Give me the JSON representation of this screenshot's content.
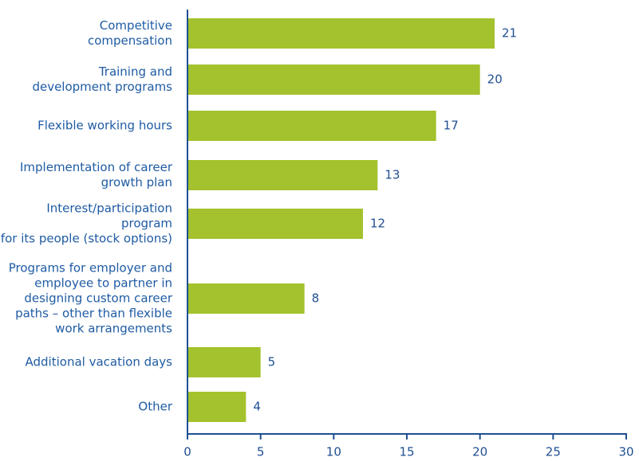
{
  "chart_data": {
    "type": "bar",
    "orientation": "horizontal",
    "categories": [
      "Competitive\ncompensation",
      "Training and\ndevelopment programs",
      "Flexible working hours",
      "Implementation of career\ngrowth plan",
      "Interest/participation program\nfor its people (stock options)",
      "Programs for employer and\nemployee to partner in\ndesigning custom career\npaths – other than flexible\nwork arrangements",
      "Additional vacation days",
      "Other"
    ],
    "values": [
      21,
      20,
      17,
      13,
      12,
      8,
      5,
      4
    ],
    "color": "#a3c22d",
    "xlim": [
      0,
      30
    ],
    "xticks": [
      0,
      5,
      10,
      15,
      20,
      25,
      30
    ],
    "grid": false
  }
}
